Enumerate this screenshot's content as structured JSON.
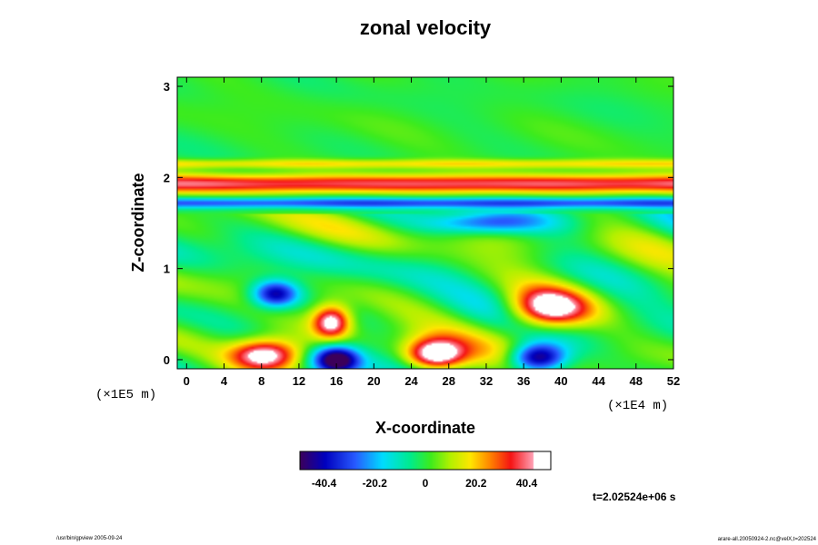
{
  "chart_data": {
    "type": "heatmap",
    "title": "zonal velocity",
    "xlabel": "X-coordinate",
    "ylabel": "Z-coordinate",
    "x_units": "(×1E4 m)",
    "y_units": "(×1E5 m)",
    "x_ticks": [
      "0",
      "4",
      "8",
      "12",
      "16",
      "20",
      "24",
      "28",
      "32",
      "36",
      "40",
      "44",
      "48",
      "52"
    ],
    "y_ticks": [
      "0",
      "1",
      "2",
      "3"
    ],
    "xlim": [
      -1,
      52
    ],
    "ylim": [
      -0.1,
      3.1
    ],
    "colorbar": {
      "ticks": [
        "-40.4",
        "-20.2",
        "0",
        "20.2",
        "40.4"
      ],
      "range": [
        -50,
        50
      ],
      "colormap": "rainbow-to-white"
    },
    "time_label": "t=2.02524e+06 s",
    "features": [
      {
        "kind": "band",
        "z": 1.93,
        "width": 0.1,
        "value": 38
      },
      {
        "kind": "band",
        "z": 1.72,
        "width": 0.06,
        "value": -30
      },
      {
        "kind": "band",
        "z": 2.15,
        "width": 0.05,
        "value": 18
      },
      {
        "kind": "blob",
        "x": 8.5,
        "z": 0.05,
        "rx": 3.8,
        "rz": 0.18,
        "value": 55
      },
      {
        "kind": "blob",
        "x": 16,
        "z": 0.0,
        "rx": 2.5,
        "rz": 0.16,
        "value": -55
      },
      {
        "kind": "blob",
        "x": 26.5,
        "z": 0.05,
        "rx": 3.2,
        "rz": 0.18,
        "value": 55
      },
      {
        "kind": "blob",
        "x": 37.5,
        "z": 0.02,
        "rx": 3.0,
        "rz": 0.16,
        "value": -55
      },
      {
        "kind": "blob",
        "x": 38.5,
        "z": 0.55,
        "rx": 4.2,
        "rz": 0.22,
        "value": 52
      },
      {
        "kind": "blob",
        "x": 15.5,
        "z": 0.42,
        "rx": 2.0,
        "rz": 0.18,
        "value": 48
      },
      {
        "kind": "blob",
        "x": 9.5,
        "z": 0.72,
        "rx": 2.5,
        "rz": 0.15,
        "value": -45
      },
      {
        "kind": "blob",
        "x": 32,
        "z": 1.5,
        "rx": 6,
        "rz": 0.12,
        "value": -30
      }
    ]
  },
  "footer": {
    "left": "/usr/bin/gpview 2005-09-24",
    "right": "arare-all.20050924-2.nc@velX,t=202524"
  }
}
